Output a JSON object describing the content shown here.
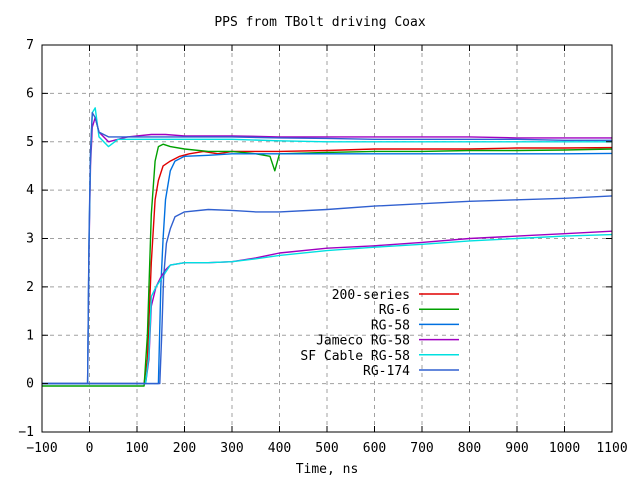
{
  "chart_data": {
    "type": "line",
    "title": "PPS from TBolt driving Coax",
    "xlabel": "Time, ns",
    "ylabel": "",
    "xlim": [
      -100,
      1100
    ],
    "ylim": [
      -1,
      7
    ],
    "xticks": [
      -100,
      0,
      100,
      200,
      300,
      400,
      500,
      600,
      700,
      800,
      900,
      1000,
      1100
    ],
    "yticks": [
      -1,
      0,
      1,
      2,
      3,
      4,
      5,
      6,
      7
    ],
    "grid": true,
    "legend_position": "center-right",
    "series": [
      {
        "name": "200-series",
        "color": "#e00000",
        "x": [
          -100,
          115,
          122,
          130,
          138,
          145,
          155,
          170,
          190,
          210,
          240,
          270,
          300,
          400,
          500,
          600,
          700,
          800,
          900,
          1000,
          1100
        ],
        "y": [
          0,
          0,
          0.5,
          2.5,
          3.8,
          4.2,
          4.5,
          4.6,
          4.7,
          4.75,
          4.8,
          4.75,
          4.8,
          4.8,
          4.82,
          4.85,
          4.85,
          4.85,
          4.87,
          4.87,
          4.88
        ]
      },
      {
        "name": "RG-6",
        "color": "#00a000",
        "x": [
          -100,
          115,
          122,
          130,
          138,
          145,
          155,
          170,
          200,
          250,
          300,
          350,
          380,
          390,
          400,
          500,
          600,
          700,
          800,
          900,
          1000,
          1100
        ],
        "y": [
          -0.05,
          -0.05,
          1.0,
          3.5,
          4.6,
          4.9,
          4.95,
          4.9,
          4.85,
          4.8,
          4.8,
          4.75,
          4.7,
          4.4,
          4.75,
          4.78,
          4.8,
          4.8,
          4.82,
          4.82,
          4.83,
          4.85
        ]
      },
      {
        "name": "RG-58",
        "color": "#0070e0",
        "x": [
          -100,
          145,
          150,
          155,
          160,
          170,
          180,
          200,
          250,
          300,
          400,
          500,
          600,
          700,
          800,
          900,
          1000,
          1100
        ],
        "y": [
          0,
          0,
          2.0,
          3.0,
          3.8,
          4.4,
          4.6,
          4.7,
          4.72,
          4.75,
          4.75,
          4.75,
          4.75,
          4.75,
          4.75,
          4.75,
          4.75,
          4.76
        ]
      },
      {
        "name": "Jameco RG-58",
        "color": "#a000c0",
        "x": [
          -100,
          -4,
          -1,
          2,
          6,
          12,
          20,
          40,
          60,
          80,
          100,
          130,
          160,
          200,
          300,
          400,
          500,
          600,
          700,
          800,
          900,
          1000,
          1100
        ],
        "y": [
          0,
          0,
          2.8,
          4.5,
          5.3,
          5.5,
          5.2,
          5.0,
          5.05,
          5.1,
          5.12,
          5.15,
          5.15,
          5.12,
          5.12,
          5.1,
          5.1,
          5.1,
          5.1,
          5.1,
          5.08,
          5.08,
          5.08
        ]
      },
      {
        "name": "SF Cable RG-58",
        "color": "#00e0e0",
        "x": [
          -100,
          -4,
          -1,
          2,
          6,
          12,
          20,
          40,
          60,
          80,
          100,
          130,
          160,
          200,
          300,
          400,
          500,
          600,
          700,
          800,
          900,
          1000,
          1100
        ],
        "y": [
          0,
          0,
          2.9,
          4.7,
          5.6,
          5.7,
          5.1,
          4.9,
          5.05,
          5.05,
          5.05,
          5.05,
          5.05,
          5.05,
          5.05,
          5.02,
          5.0,
          5.0,
          5.0,
          5.0,
          5.0,
          5.0,
          5.0
        ]
      },
      {
        "name": "RG-174",
        "color": "#3060d0",
        "x": [
          -100,
          -4,
          -1,
          2,
          6,
          12,
          20,
          40,
          60,
          80,
          100,
          130,
          160,
          200,
          300,
          400,
          500,
          600,
          700,
          800,
          900,
          1000,
          1100
        ],
        "y": [
          0,
          0,
          3.0,
          4.8,
          5.6,
          5.5,
          5.2,
          5.1,
          5.1,
          5.1,
          5.1,
          5.1,
          5.1,
          5.1,
          5.1,
          5.08,
          5.07,
          5.05,
          5.05,
          5.05,
          5.05,
          5.03,
          5.03
        ]
      },
      {
        "name": "",
        "color": "#a000c0",
        "x": [
          -100,
          118,
          125,
          130,
          140,
          150,
          160,
          170,
          200,
          250,
          300,
          350,
          400,
          500,
          600,
          700,
          800,
          900,
          1000,
          1100
        ],
        "y": [
          0,
          0,
          0.5,
          1.6,
          2.0,
          2.2,
          2.35,
          2.45,
          2.5,
          2.5,
          2.52,
          2.6,
          2.7,
          2.8,
          2.85,
          2.92,
          3.0,
          3.05,
          3.1,
          3.15
        ]
      },
      {
        "name": "",
        "color": "#00e0e0",
        "x": [
          -100,
          118,
          125,
          130,
          140,
          150,
          160,
          170,
          200,
          250,
          300,
          350,
          400,
          500,
          600,
          700,
          800,
          900,
          1000,
          1100
        ],
        "y": [
          0,
          0,
          0.6,
          1.8,
          2.0,
          2.15,
          2.3,
          2.45,
          2.5,
          2.5,
          2.52,
          2.58,
          2.65,
          2.75,
          2.82,
          2.88,
          2.95,
          3.0,
          3.05,
          3.08
        ]
      },
      {
        "name": "",
        "color": "#3060d0",
        "x": [
          -100,
          148,
          152,
          156,
          162,
          170,
          180,
          200,
          250,
          300,
          350,
          400,
          500,
          600,
          700,
          800,
          900,
          1000,
          1100
        ],
        "y": [
          0,
          0,
          1.0,
          2.2,
          2.9,
          3.2,
          3.45,
          3.55,
          3.6,
          3.58,
          3.55,
          3.55,
          3.6,
          3.67,
          3.72,
          3.77,
          3.8,
          3.83,
          3.88
        ]
      }
    ]
  }
}
